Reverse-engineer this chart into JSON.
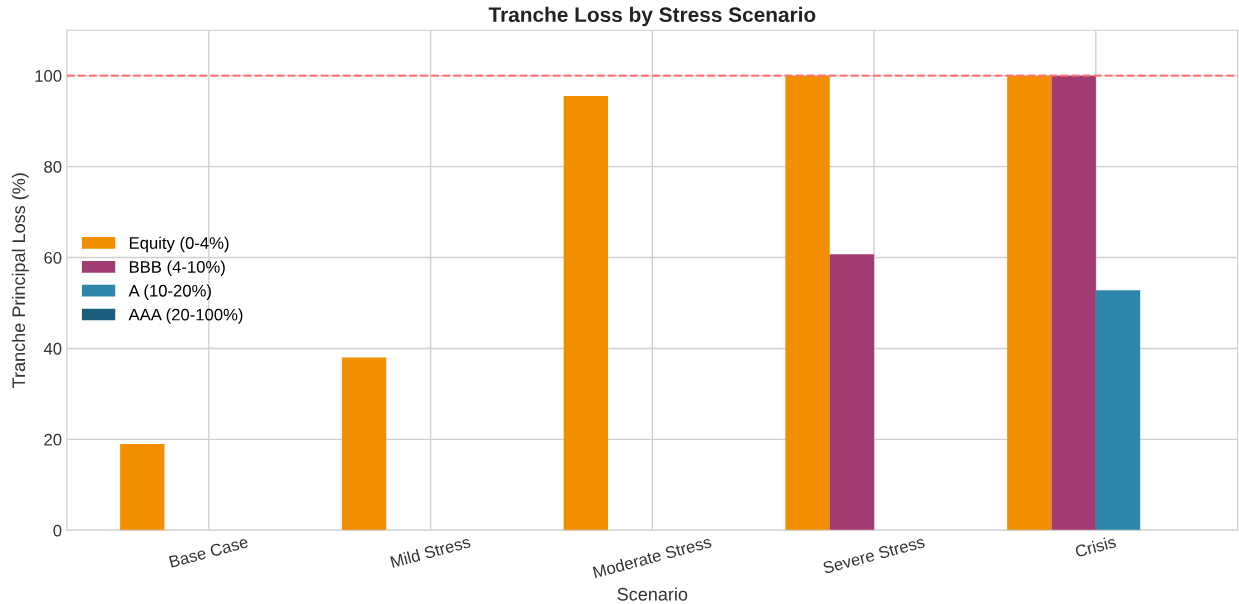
{
  "chart_data": {
    "type": "bar",
    "title": "Tranche Loss by Stress Scenario",
    "xlabel": "Scenario",
    "ylabel": "Tranche Principal Loss (%)",
    "categories": [
      "Base Case",
      "Mild Stress",
      "Moderate Stress",
      "Severe Stress",
      "Crisis"
    ],
    "series": [
      {
        "name": "Equity (0-4%)",
        "color": "#f18f01",
        "values": [
          19,
          38,
          95.5,
          100,
          100
        ]
      },
      {
        "name": "BBB (4-10%)",
        "color": "#a23b72",
        "values": [
          0,
          0,
          0,
          60.7,
          100
        ]
      },
      {
        "name": "A (10-20%)",
        "color": "#2e86ab",
        "values": [
          0,
          0,
          0,
          0,
          52.8
        ]
      },
      {
        "name": "AAA (20-100%)",
        "color": "#1b5e7b",
        "values": [
          0,
          0,
          0,
          0,
          0
        ]
      }
    ],
    "ylim": [
      0,
      110
    ],
    "yticks": [
      0,
      20,
      40,
      60,
      80,
      100
    ],
    "ref_lines": [
      {
        "axis": "y",
        "value": 100,
        "color": "#ff6b6b",
        "line_style": "dashed"
      }
    ],
    "grid": true,
    "legend": "left"
  }
}
